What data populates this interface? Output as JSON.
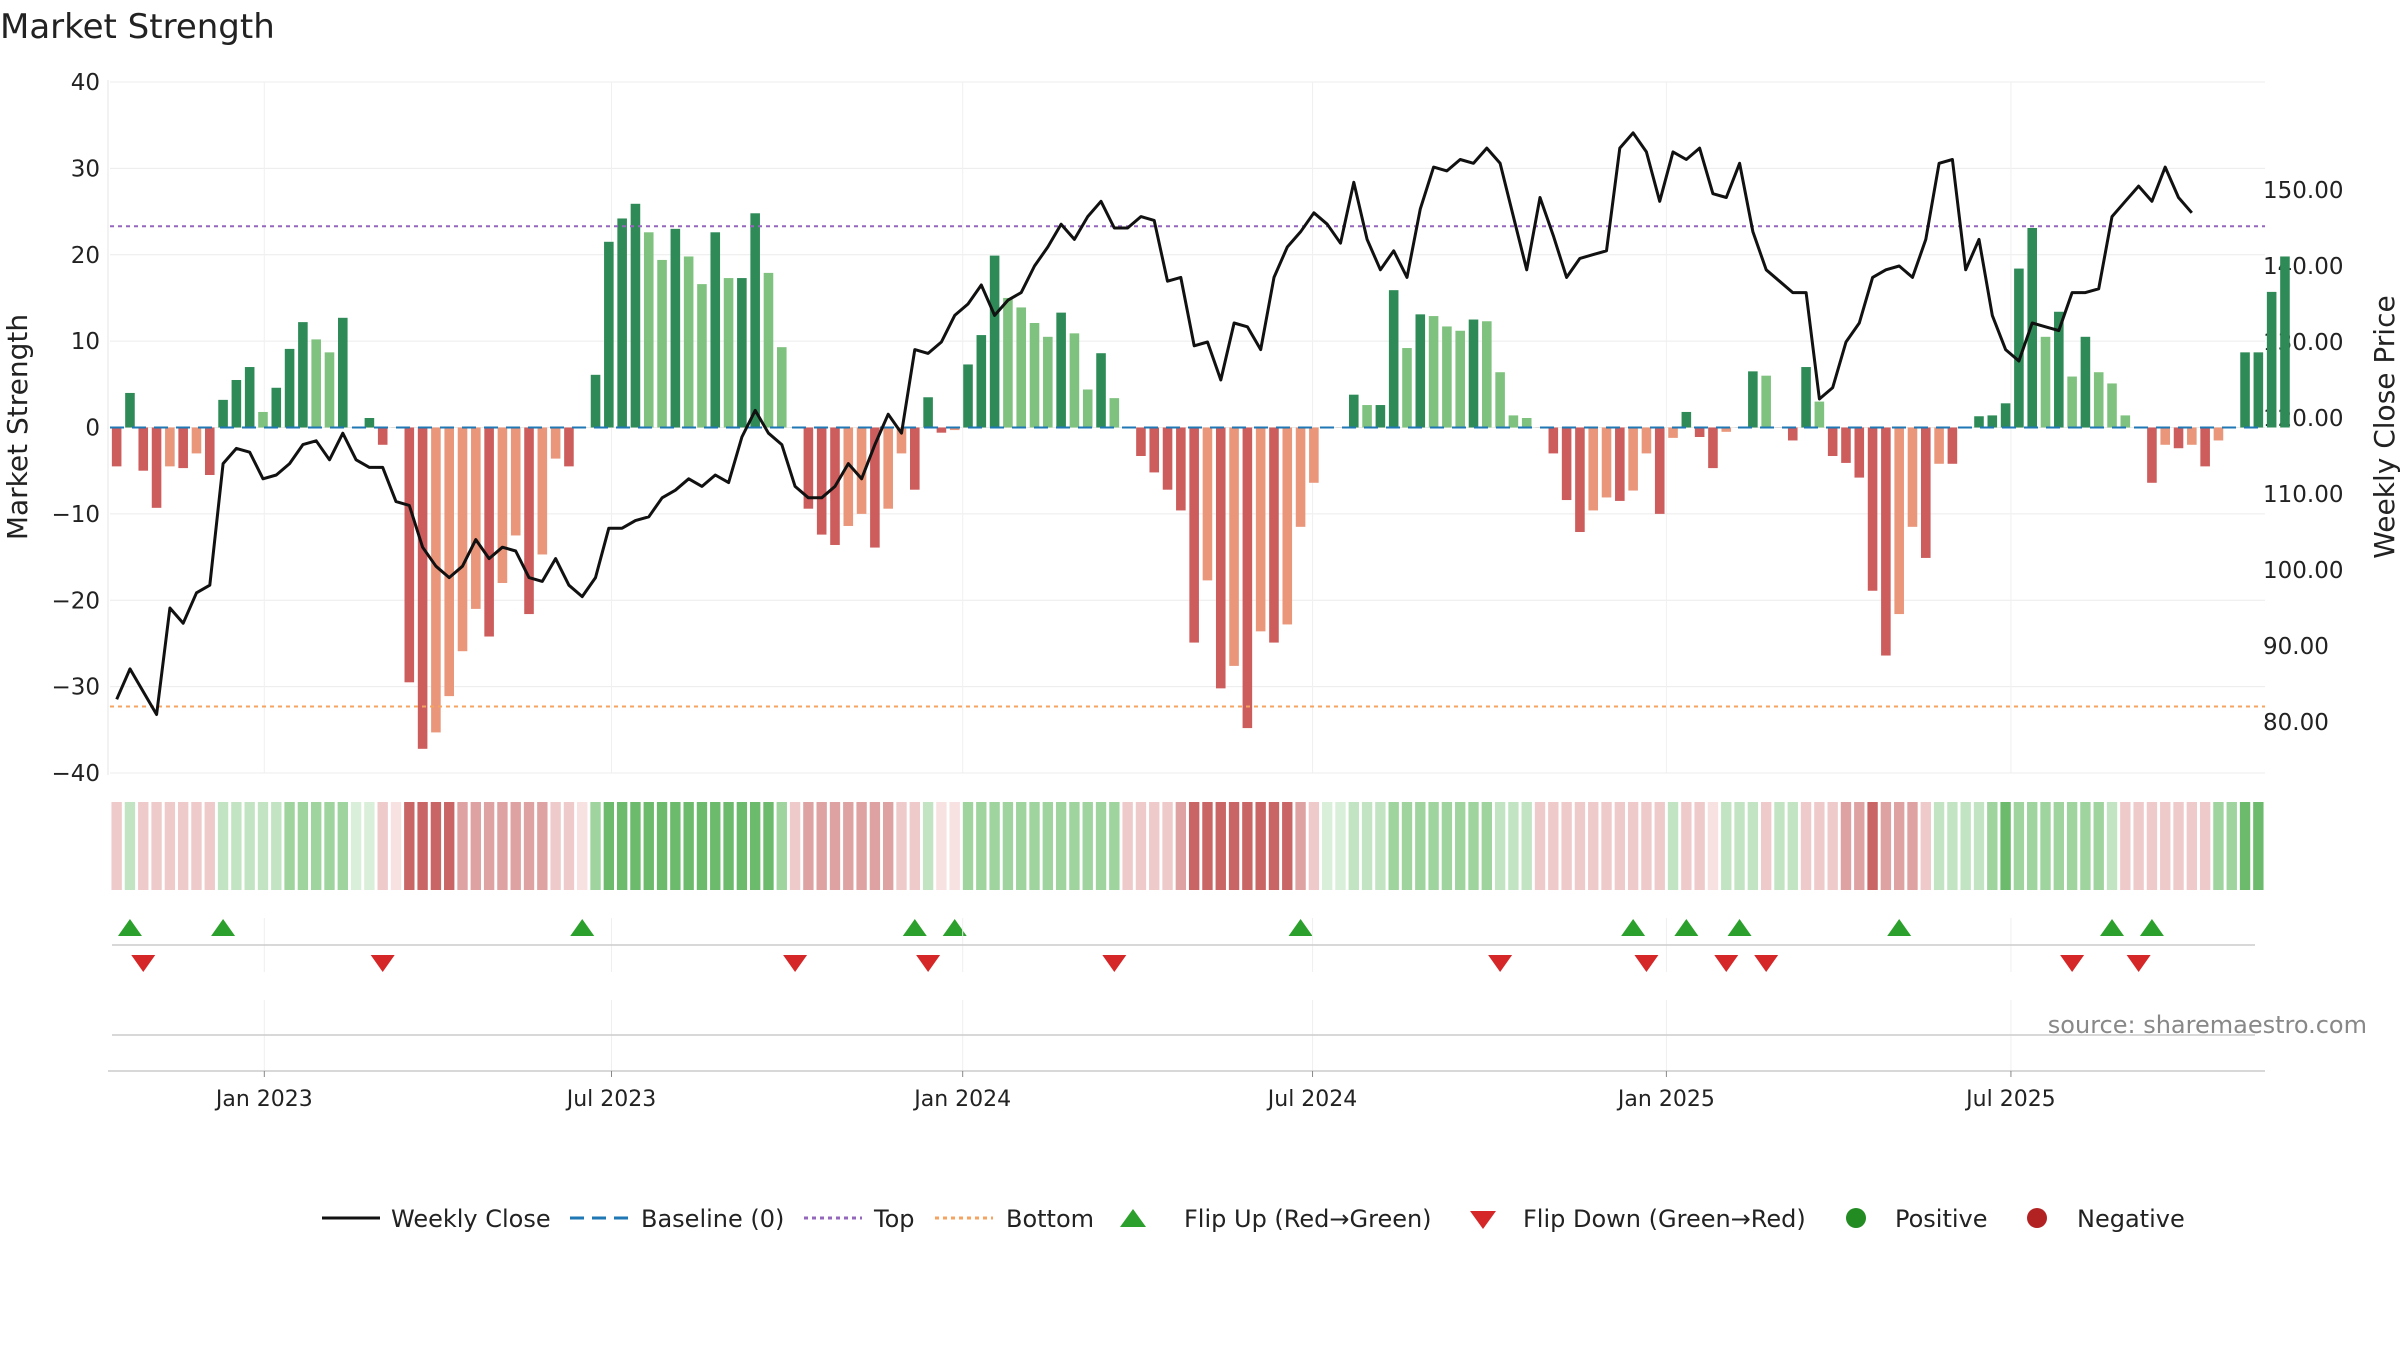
{
  "chart_data": {
    "type": "bar",
    "title": "Market Strength",
    "ylabel_left": "Market Strength",
    "ylabel_right": "Weekly Close Price",
    "ylim_left": [
      -40,
      40
    ],
    "ylim_right": [
      73.3,
      164.2
    ],
    "left_ticks": [
      "40",
      "30",
      "20",
      "10",
      "0",
      "−10",
      "−20",
      "−30",
      "−40"
    ],
    "left_tick_values": [
      40,
      30,
      20,
      10,
      0,
      -10,
      -20,
      -30,
      -40
    ],
    "right_ticks": [
      "150.00",
      "140.00",
      "130.00",
      "120.00",
      "110.00",
      "100.00",
      "90.00",
      "80.00"
    ],
    "right_tick_values": [
      150,
      140,
      130,
      120,
      110,
      100,
      90,
      80
    ],
    "x_start": "2022-10-14",
    "x_step_days": 7,
    "x_end_weeks": 162,
    "x_ticks": [
      "Jan 2023",
      "Jul 2023",
      "Jan 2024",
      "Jul 2024",
      "Jan 2025",
      "Jul 2025"
    ],
    "x_tick_positions_weeks": [
      11.6,
      37.7,
      64.1,
      90.4,
      117.0,
      142.9
    ],
    "top_level": 23.3,
    "bottom_level": -32.3,
    "baseline": 0,
    "strength": [
      -4.5,
      4,
      -5,
      -9.3,
      -4.5,
      -4.7,
      -3,
      -5.5,
      3.2,
      5.5,
      7,
      1.8,
      4.6,
      9.1,
      12.2,
      10.2,
      8.7,
      12.7,
      0,
      1.1,
      -2,
      0,
      -29.5,
      -37.2,
      -35.3,
      -31.1,
      -25.9,
      -21,
      -24.2,
      -18,
      -12.5,
      -21.6,
      -14.7,
      -3.6,
      -4.5,
      0,
      6.1,
      21.5,
      24.2,
      25.9,
      22.6,
      19.4,
      23,
      19.8,
      16.6,
      22.6,
      17.3,
      17.3,
      24.8,
      17.9,
      9.3,
      0,
      -9.4,
      -12.4,
      -13.6,
      -11.4,
      -10,
      -13.9,
      -9.4,
      -3,
      -7.2,
      3.5,
      -0.6,
      -0.3,
      7.3,
      10.7,
      19.9,
      15,
      13.9,
      12.1,
      10.5,
      13.3,
      10.9,
      4.4,
      8.6,
      3.4,
      0,
      -3.3,
      -5.2,
      -7.2,
      -9.6,
      -24.9,
      -17.7,
      -30.2,
      -27.6,
      -34.8,
      -23.6,
      -24.9,
      -22.8,
      -11.5,
      -6.4,
      0,
      0,
      3.8,
      2.6,
      2.6,
      15.9,
      9.2,
      13.1,
      12.9,
      11.7,
      11.2,
      12.5,
      12.3,
      6.4,
      1.4,
      1.1,
      0,
      -3,
      -8.4,
      -12.1,
      -9.6,
      -8.1,
      -8.5,
      -7.3,
      -3,
      -10,
      -1.2,
      1.8,
      -1.1,
      -4.7,
      -0.5,
      0,
      6.5,
      6,
      0,
      -1.5,
      7,
      3,
      -3.3,
      -4.1,
      -5.8,
      -18.9,
      -26.4,
      -21.6,
      -11.5,
      -15.1,
      -4.2,
      -4.2,
      0,
      1.3,
      1.4,
      2.8,
      18.4,
      23.1,
      10.5,
      13.4,
      5.9,
      10.5,
      6.4,
      5.1,
      1.4,
      0,
      -6.4,
      -2,
      -2.4,
      -2,
      -4.5,
      -1.5,
      0,
      8.7,
      8.7,
      15.7,
      19.8
    ],
    "weekly_close": [
      83,
      87,
      84,
      81,
      95,
      93,
      97,
      98,
      114,
      116,
      115.5,
      112,
      112.5,
      114,
      116.5,
      117,
      114.5,
      118,
      114.5,
      113.5,
      113.5,
      109,
      108.5,
      103,
      100.5,
      99,
      100.5,
      104,
      101.5,
      103,
      102.5,
      99,
      98.5,
      101.5,
      98,
      96.5,
      99,
      105.5,
      105.5,
      106.5,
      107,
      109.5,
      110.5,
      112,
      111,
      112.5,
      111.5,
      117.5,
      121,
      118,
      116.5,
      111,
      109.5,
      109.5,
      111,
      114,
      112,
      116.5,
      120.5,
      118,
      129,
      128.5,
      130,
      133.5,
      135,
      137.5,
      133.5,
      135.5,
      136.5,
      140,
      142.5,
      145.5,
      143.5,
      146.5,
      148.5,
      145,
      145,
      146.5,
      146,
      138,
      138.5,
      129.5,
      130,
      125,
      132.5,
      132,
      129,
      138.5,
      142.5,
      144.5,
      147,
      145.5,
      143,
      151,
      143.5,
      139.5,
      142,
      138.5,
      147.5,
      153,
      152.5,
      154,
      153.5,
      155.5,
      153.5,
      146.5,
      139.5,
      149,
      144,
      138.5,
      141,
      141.5,
      142,
      155.5,
      157.5,
      155,
      148.5,
      155,
      154,
      155.5,
      149.5,
      149,
      153.5,
      144.5,
      139.5,
      138,
      136.5,
      136.5,
      122.5,
      124,
      130,
      132.5,
      138.5,
      139.5,
      140,
      138.5,
      143.5,
      153.5,
      154,
      139.5,
      143.5,
      133.5,
      129,
      127.5,
      132.5,
      132,
      131.5,
      136.5,
      136.5,
      137,
      146.5,
      148.5,
      150.5,
      148.5,
      153,
      149,
      147
    ],
    "regime_strip": [
      "r1",
      "g1",
      "r1",
      "r1",
      "r1",
      "r1",
      "r1",
      "r1",
      "g1",
      "g1",
      "g1",
      "g1",
      "g1",
      "g2",
      "g2",
      "g2",
      "g2",
      "g2",
      "g0",
      "g0",
      "r1",
      "r0",
      "r3",
      "r3",
      "r3",
      "r3",
      "r2",
      "r2",
      "r2",
      "r2",
      "r2",
      "r2",
      "r2",
      "r1",
      "r1",
      "r0",
      "g2",
      "g3",
      "g3",
      "g3",
      "g3",
      "g3",
      "g3",
      "g3",
      "g3",
      "g3",
      "g3",
      "g3",
      "g3",
      "g3",
      "g2",
      "r1",
      "r2",
      "r2",
      "r2",
      "r2",
      "r2",
      "r2",
      "r2",
      "r1",
      "r1",
      "g1",
      "r0",
      "r0",
      "g2",
      "g2",
      "g2",
      "g2",
      "g2",
      "g2",
      "g2",
      "g2",
      "g2",
      "g2",
      "g2",
      "g2",
      "r1",
      "r1",
      "r1",
      "r1",
      "r2",
      "r3",
      "r3",
      "r3",
      "r3",
      "r3",
      "r3",
      "r3",
      "r3",
      "r2",
      "r1",
      "g0",
      "g0",
      "g1",
      "g1",
      "g1",
      "g2",
      "g2",
      "g2",
      "g2",
      "g2",
      "g2",
      "g2",
      "g2",
      "g1",
      "g1",
      "g1",
      "r1",
      "r1",
      "r1",
      "r1",
      "r1",
      "r1",
      "r1",
      "r1",
      "r1",
      "r1",
      "g1",
      "r1",
      "r1",
      "r0",
      "g1",
      "g1",
      "g1",
      "r1",
      "g1",
      "g1",
      "r1",
      "r1",
      "r1",
      "r2",
      "r2",
      "r3",
      "r2",
      "r2",
      "r2",
      "r1",
      "g1",
      "g1",
      "g1",
      "g1",
      "g2",
      "g3",
      "g2",
      "g2",
      "g2",
      "g2",
      "g2",
      "g2",
      "g2",
      "g1",
      "r1",
      "r1",
      "r1",
      "r1",
      "r1",
      "r1",
      "r1",
      "g2",
      "g2",
      "g3",
      "g3"
    ],
    "flip_up_weeks": [
      1,
      8,
      35,
      60,
      63,
      89,
      114,
      118,
      122,
      134,
      150,
      153
    ],
    "flip_down_weeks": [
      2,
      20,
      51,
      61,
      75,
      104,
      115,
      121,
      124,
      147,
      152
    ],
    "legend": [
      "Weekly Close",
      "Baseline (0)",
      "Top",
      "Bottom",
      "Flip Up (Red→Green)",
      "Flip Down (Green→Red)",
      "Positive",
      "Negative"
    ],
    "source": "source: sharemaestro.com"
  },
  "colors": {
    "pos_dark": "#2e8b57",
    "pos_light": "#7fc27f",
    "neg_dark": "#cd5c5c",
    "neg_light": "#e9967a",
    "line": "#111111",
    "baseline": "#1f77b4",
    "top": "#9467bd",
    "bottom": "#f4a460",
    "flip_up": "#2ca02c",
    "flip_down": "#d62728",
    "positive_dot": "#228b22",
    "negative_dot": "#b22222",
    "strip_g0": "#d9efd9",
    "strip_g1": "#c3e4c3",
    "strip_g2": "#9fd49f",
    "strip_g3": "#6cbb6c",
    "strip_r0": "#f7e1e1",
    "strip_r1": "#efcaca",
    "strip_r2": "#dfa2a2",
    "strip_r3": "#c96565"
  }
}
